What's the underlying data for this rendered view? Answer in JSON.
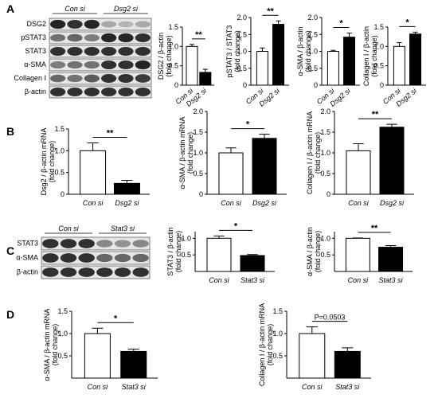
{
  "panels": [
    {
      "letter": "A"
    },
    {
      "letter": "B"
    },
    {
      "letter": "C"
    },
    {
      "letter": "D"
    }
  ],
  "blots": [
    {
      "panel": "A",
      "groups": [
        "Con si",
        "Dsg2 si"
      ],
      "rows": [
        {
          "label": "DSG2",
          "intensity": [
            0.9,
            0.85,
            0.9,
            0.3,
            0.25,
            0.3
          ]
        },
        {
          "label": "pSTAT3",
          "intensity": [
            0.55,
            0.6,
            0.5,
            0.9,
            0.9,
            0.85
          ]
        },
        {
          "label": "STAT3",
          "intensity": [
            0.85,
            0.85,
            0.85,
            0.85,
            0.85,
            0.85
          ]
        },
        {
          "label": "α-SMA",
          "intensity": [
            0.5,
            0.55,
            0.55,
            0.85,
            0.85,
            0.9
          ]
        },
        {
          "label": "Collagen I",
          "intensity": [
            0.6,
            0.55,
            0.65,
            0.85,
            0.85,
            0.8
          ]
        },
        {
          "label": "β-actin",
          "intensity": [
            0.85,
            0.85,
            0.85,
            0.85,
            0.85,
            0.85
          ]
        }
      ]
    },
    {
      "panel": "C",
      "groups": [
        "Con si",
        "Stat3 si"
      ],
      "rows": [
        {
          "label": "STAT3",
          "intensity": [
            0.85,
            0.85,
            0.85,
            0.45,
            0.4,
            0.45
          ]
        },
        {
          "label": "α-SMA",
          "intensity": [
            0.85,
            0.85,
            0.85,
            0.6,
            0.6,
            0.6
          ]
        },
        {
          "label": "β-actin",
          "intensity": [
            0.85,
            0.85,
            0.85,
            0.85,
            0.85,
            0.85
          ]
        }
      ]
    }
  ],
  "chart_data": [
    {
      "panel": "A",
      "type": "bar",
      "categories": [
        "Con si",
        "Dsg2 si"
      ],
      "values": [
        1.0,
        0.33
      ],
      "errors": [
        0.05,
        0.08
      ],
      "ylabel_lines": [
        "DSG2 / β-actin",
        "(fold change)"
      ],
      "ylim": [
        0,
        1.5
      ],
      "yticks": [
        0,
        0.5,
        1.0,
        1.5
      ],
      "yticklabels": [
        "0",
        "0.5",
        "1.0",
        "1.5"
      ],
      "significance": "**",
      "fill": [
        "#ffffff",
        "#000000"
      ]
    },
    {
      "panel": "A",
      "type": "bar",
      "categories": [
        "Con si",
        "Dsg2 si"
      ],
      "values": [
        1.0,
        1.8
      ],
      "errors": [
        0.1,
        0.1
      ],
      "ylabel_lines": [
        "pSTAT3 / STAT3",
        "(fold change)"
      ],
      "ylim": [
        0,
        2.0
      ],
      "yticks": [
        0,
        0.5,
        1.0,
        1.5,
        2.0
      ],
      "yticklabels": [
        "0",
        "0.5",
        "1.0",
        "1.5",
        "2.0"
      ],
      "significance": "**",
      "fill": [
        "#ffffff",
        "#000000"
      ]
    },
    {
      "panel": "A",
      "type": "bar",
      "categories": [
        "Con si",
        "Dsg2 si"
      ],
      "values": [
        1.0,
        1.42
      ],
      "errors": [
        0.03,
        0.12
      ],
      "ylabel_lines": [
        "α-SMA / β-actin",
        "(fold change)"
      ],
      "ylim": [
        0,
        2.0
      ],
      "yticks": [
        0,
        0.5,
        1.0,
        1.5,
        2.0
      ],
      "yticklabels": [
        "0",
        "0.5",
        "1.0",
        "1.5",
        "2.0"
      ],
      "significance": "*",
      "fill": [
        "#ffffff",
        "#000000"
      ]
    },
    {
      "panel": "A",
      "type": "bar",
      "categories": [
        "Con si",
        "Dsg2 si"
      ],
      "values": [
        1.0,
        1.32
      ],
      "errors": [
        0.1,
        0.05
      ],
      "ylabel_lines": [
        "Collagen I / β-actin",
        "(fold change)"
      ],
      "ylim": [
        0,
        1.5
      ],
      "yticks": [
        0,
        0.5,
        1.0,
        1.5
      ],
      "yticklabels": [
        "0",
        "0.5",
        "1.0",
        "1.5"
      ],
      "significance": "*",
      "fill": [
        "#ffffff",
        "#000000"
      ]
    },
    {
      "panel": "B",
      "type": "bar",
      "categories": [
        "Con si",
        "Dsg2 si"
      ],
      "values": [
        1.0,
        0.25
      ],
      "errors": [
        0.18,
        0.07
      ],
      "ylabel_lines": [
        "Dsg2 / β-actin mRNA",
        "(fold change)"
      ],
      "ylim": [
        0,
        1.5
      ],
      "yticks": [
        0,
        0.5,
        1.0,
        1.5
      ],
      "yticklabels": [
        "0",
        "0.5",
        "1.0",
        "1.5"
      ],
      "significance": "**",
      "fill": [
        "#ffffff",
        "#000000"
      ]
    },
    {
      "panel": "B",
      "type": "bar",
      "categories": [
        "Con si",
        "Dsg2 si"
      ],
      "values": [
        1.0,
        1.35
      ],
      "errors": [
        0.12,
        0.1
      ],
      "ylabel_lines": [
        "α-SMA / β-actin mRNA",
        "(fold change)"
      ],
      "ylim": [
        0,
        2.0
      ],
      "yticks": [
        0,
        0.5,
        1.0,
        1.5,
        2.0
      ],
      "yticklabels": [
        "0",
        "0.5",
        "1.0",
        "1.5",
        "2.0"
      ],
      "significance": "*",
      "fill": [
        "#ffffff",
        "#000000"
      ]
    },
    {
      "panel": "B",
      "type": "bar",
      "categories": [
        "Con si",
        "Dsg2 si"
      ],
      "values": [
        1.05,
        1.62
      ],
      "errors": [
        0.17,
        0.07
      ],
      "ylabel_lines": [
        "Collagen I / β-actin mRNA",
        "(fold change)"
      ],
      "ylim": [
        0,
        2.0
      ],
      "yticks": [
        0,
        0.5,
        1.0,
        1.5,
        2.0
      ],
      "yticklabels": [
        "0",
        "0.5",
        "1.0",
        "1.5",
        "2.0"
      ],
      "significance": "**",
      "fill": [
        "#ffffff",
        "#000000"
      ]
    },
    {
      "panel": "C",
      "type": "bar",
      "categories": [
        "Con si",
        "Stat3 si"
      ],
      "values": [
        1.0,
        0.48
      ],
      "errors": [
        0.07,
        0.03
      ],
      "ylabel_lines": [
        "STAT3 / β-actin",
        "(fold change)"
      ],
      "ylim": [
        0,
        1.2
      ],
      "yticks": [
        0.5,
        1.0
      ],
      "yticklabels": [
        "0.5",
        "1.0"
      ],
      "significance": "*",
      "fill": [
        "#ffffff",
        "#000000"
      ]
    },
    {
      "panel": "C",
      "type": "bar",
      "categories": [
        "Con si",
        "Stat3 si"
      ],
      "values": [
        1.0,
        0.73
      ],
      "errors": [
        0.01,
        0.05
      ],
      "ylabel_lines": [
        "α-SMA / β-actin",
        "(fold change)"
      ],
      "ylim": [
        0,
        1.2
      ],
      "yticks": [
        0.5,
        1.0
      ],
      "yticklabels": [
        "0.5",
        "1.0"
      ],
      "significance": "**",
      "fill": [
        "#ffffff",
        "#000000"
      ]
    },
    {
      "panel": "D",
      "type": "bar",
      "categories": [
        "Con si",
        "Stat3 si"
      ],
      "values": [
        1.0,
        0.6
      ],
      "errors": [
        0.12,
        0.05
      ],
      "ylabel_lines": [
        "α-SMA / β-actin mRNA",
        "(fold change)"
      ],
      "ylim": [
        0,
        1.5
      ],
      "yticks": [
        0.5,
        1.0,
        1.5
      ],
      "yticklabels": [
        "0.5",
        "1.0",
        "1.5"
      ],
      "significance": "*",
      "fill": [
        "#ffffff",
        "#000000"
      ]
    },
    {
      "panel": "D",
      "type": "bar",
      "categories": [
        "Con si",
        "Stat3 si"
      ],
      "values": [
        1.0,
        0.6
      ],
      "errors": [
        0.15,
        0.08
      ],
      "ylabel_lines": [
        "Collagen I / β-actin mRNA",
        "(fold change)"
      ],
      "ylim": [
        0,
        1.5
      ],
      "yticks": [
        0.5,
        1.0,
        1.5
      ],
      "yticklabels": [
        "0.5",
        "1.0",
        "1.5"
      ],
      "significance": "P=0.0503",
      "fill": [
        "#ffffff",
        "#000000"
      ]
    }
  ]
}
